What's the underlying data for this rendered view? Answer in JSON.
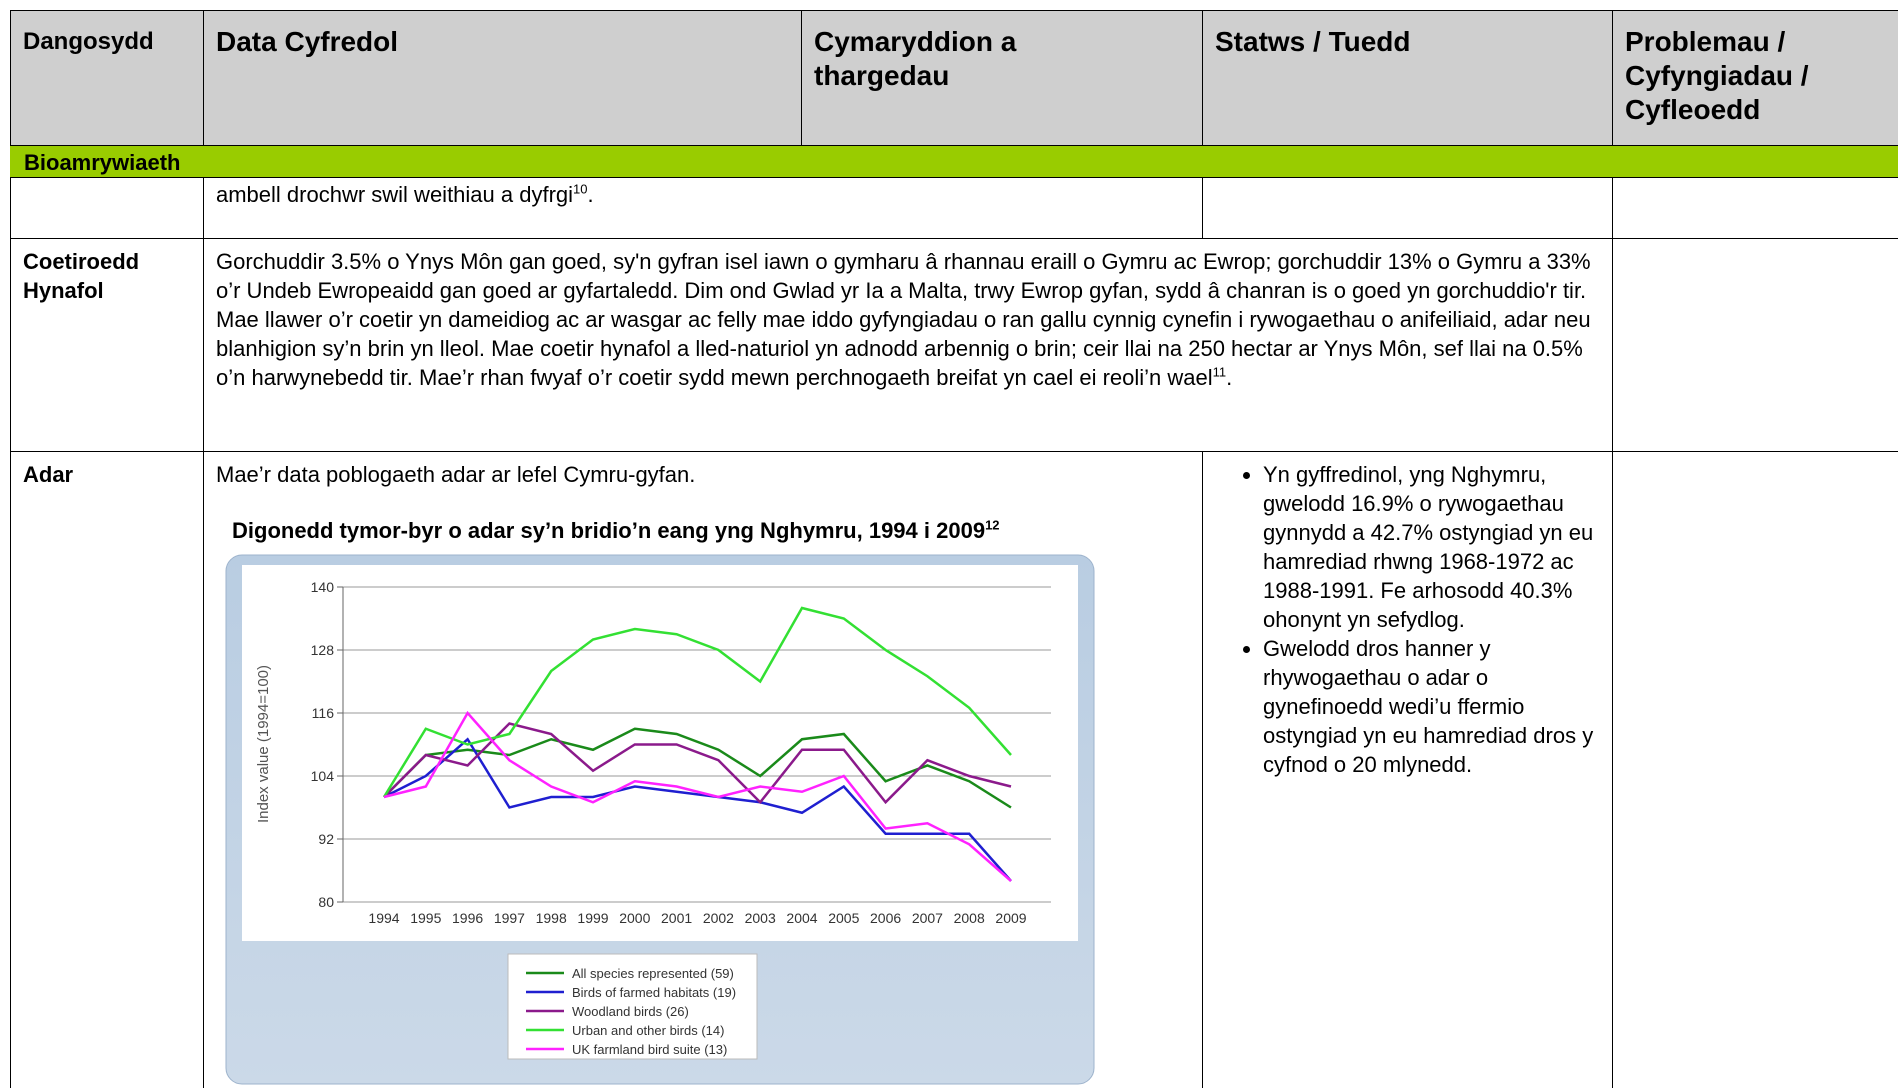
{
  "header": [
    "Dangosydd",
    "Data Cyfredol",
    "Cymaryddion a thargedau",
    "Statws / Tuedd",
    "Problemau / Cyfyngiadau / Cyfleoedd"
  ],
  "section": "Bioamrywiaeth",
  "rows": [
    {
      "data": {
        "text": "ambell drochwr swil weithiau a dyfrgi",
        "footnote": "10",
        "end": "."
      }
    },
    {
      "indicator": "Coetiroedd Hynafol",
      "data": {
        "text": "Gorchuddir 3.5% o Ynys Môn gan goed, sy'n gyfran isel iawn o gymharu â rhannau eraill o Gymru ac Ewrop; gorchuddir  13% o Gymru a 33% o’r Undeb Ewropeaidd gan goed ar gyfartaledd. Dim ond Gwlad yr Ia a Malta, trwy Ewrop gyfan, sydd â chanran is o goed yn gorchuddio'r tir. Mae llawer o’r coetir yn dameidiog ac ar wasgar ac felly mae iddo gyfyngiadau o ran gallu cynnig cynefin i rywogaethau o anifeiliaid, adar neu blanhigion sy’n brin yn lleol. Mae coetir hynafol a lled-naturiol yn adnodd arbennig o brin; ceir llai na 250 hectar ar Ynys Môn, sef llai na 0.5% o’n harwynebedd tir. Mae’r rhan fwyaf o’r  coetir sydd mewn perchnogaeth breifat yn cael ei reoli’n wael",
        "footnote": "11",
        "end": "."
      }
    },
    {
      "indicator": "Adar",
      "data": {
        "text": "Mae’r data poblogaeth adar ar lefel Cymru-gyfan."
      },
      "status": [
        "Yn gyffredinol, yng Nghymru, gwelodd 16.9% o rywogaethau gynnydd a 42.7% ostyngiad yn eu hamrediad rhwng 1968-1972 ac 1988-1991. Fe arhosodd 40.3% ohonynt yn sefydlog.",
        "Gwelodd dros hanner y rhywogaethau o adar o gynefinoedd wedi’u ffermio ostyngiad yn eu hamrediad dros y cyfnod o 20 mlynedd."
      ]
    }
  ],
  "chart_data": {
    "type": "line",
    "title": "Digonedd tymor-byr o adar sy’n bridio’n eang yng Nghymru, 1994 i 2009",
    "title_footnote": "12",
    "ylabel": "Index value (1994=100)",
    "categories": [
      "1994",
      "1995",
      "1996",
      "1997",
      "1998",
      "1999",
      "2000",
      "2001",
      "2002",
      "2003",
      "2004",
      "2005",
      "2006",
      "2007",
      "2008",
      "2009"
    ],
    "ylim": [
      80,
      140
    ],
    "yticks": [
      80,
      92,
      104,
      116,
      128,
      140
    ],
    "grid": true,
    "series": [
      {
        "name": "All species represented (59)",
        "color": "#1a8a1a",
        "values": [
          100,
          108,
          109,
          108,
          111,
          109,
          113,
          112,
          109,
          104,
          111,
          112,
          103,
          106,
          103,
          98
        ]
      },
      {
        "name": "Birds of farmed habitats (19)",
        "color": "#1f1fd0",
        "values": [
          100,
          104,
          111,
          98,
          100,
          100,
          102,
          101,
          100,
          99,
          97,
          102,
          93,
          93,
          93,
          84
        ]
      },
      {
        "name": "Woodland birds (26)",
        "color": "#8b1a8b",
        "values": [
          100,
          108,
          106,
          114,
          112,
          105,
          110,
          110,
          107,
          99,
          109,
          109,
          99,
          107,
          104,
          102
        ]
      },
      {
        "name": "Urban and other birds (14)",
        "color": "#33e033",
        "values": [
          100,
          113,
          110,
          112,
          124,
          130,
          132,
          131,
          128,
          122,
          136,
          134,
          128,
          123,
          117,
          108
        ]
      },
      {
        "name": "UK farmland bird suite (13)",
        "color": "#ff22ff",
        "values": [
          100,
          102,
          116,
          107,
          102,
          99,
          103,
          102,
          100,
          102,
          101,
          104,
          94,
          95,
          91,
          84
        ]
      }
    ]
  }
}
